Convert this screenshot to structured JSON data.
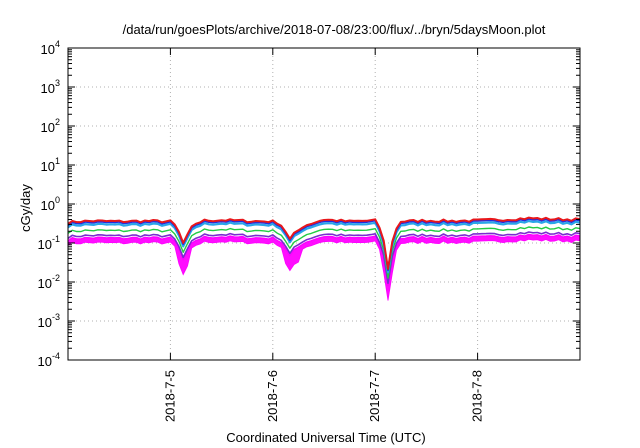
{
  "chart_data": {
    "type": "line",
    "title": "/data/run/goesPlots/archive/2018-07-08/23:00/flux/../bryn/5daysMoon.plot",
    "xlabel": "Coordinated Universal Time (UTC)",
    "ylabel": "cGy/day",
    "x_range": [
      "2018-07-04 00:00",
      "2018-07-09 00:00"
    ],
    "x_ticks": [
      "2018-7-5",
      "2018-7-6",
      "2018-7-7",
      "2018-7-8"
    ],
    "y_scale": "log",
    "ylim": [
      0.0001,
      10000
    ],
    "y_ticks": [
      {
        "base": "10",
        "exp": "-4"
      },
      {
        "base": "10",
        "exp": "-3"
      },
      {
        "base": "10",
        "exp": "-2"
      },
      {
        "base": "10",
        "exp": "-1"
      },
      {
        "base": "10",
        "exp": "0"
      },
      {
        "base": "10",
        "exp": "1"
      },
      {
        "base": "10",
        "exp": "2"
      },
      {
        "base": "10",
        "exp": "3"
      },
      {
        "base": "10",
        "exp": "4"
      }
    ],
    "grid": true,
    "x_step_hours": 1,
    "anchors_hours": [
      0,
      2,
      6,
      12,
      18,
      24,
      28,
      32,
      36,
      42,
      48,
      54,
      60,
      66,
      72,
      75,
      78,
      84,
      90,
      96,
      102,
      108,
      114,
      120
    ],
    "anchors_level": [
      0.31,
      0.33,
      0.34,
      0.33,
      0.34,
      0.33,
      0.24,
      0.35,
      0.36,
      0.34,
      0.33,
      0.22,
      0.37,
      0.33,
      0.35,
      0.14,
      0.33,
      0.35,
      0.34,
      0.35,
      0.37,
      0.4,
      0.38,
      0.37
    ],
    "dips": [
      {
        "center_hour": 27,
        "width_hours": 2.5,
        "factor": 0.35
      },
      {
        "center_hour": 52,
        "width_hours": 2.5,
        "factor": 0.45
      },
      {
        "center_hour": 75,
        "width_hours": 2.5,
        "factor": 0.15
      }
    ],
    "series": [
      {
        "factor": 1.08,
        "color": "#e8171b",
        "width": 2.0
      },
      {
        "factor": 1.0,
        "color": "#1f2fe0",
        "width": 1.8
      },
      {
        "factor": 0.88,
        "color": "#29a6e8",
        "width": 2.2
      },
      {
        "factor": 0.62,
        "color": "#22cc44",
        "width": 1.4
      },
      {
        "factor": 0.46,
        "color": "#7a2bd0",
        "width": 1.6
      },
      {
        "factor": 0.4,
        "color": "#ff00ff",
        "width": 1.4,
        "band_low_factor": 0.3
      }
    ]
  }
}
